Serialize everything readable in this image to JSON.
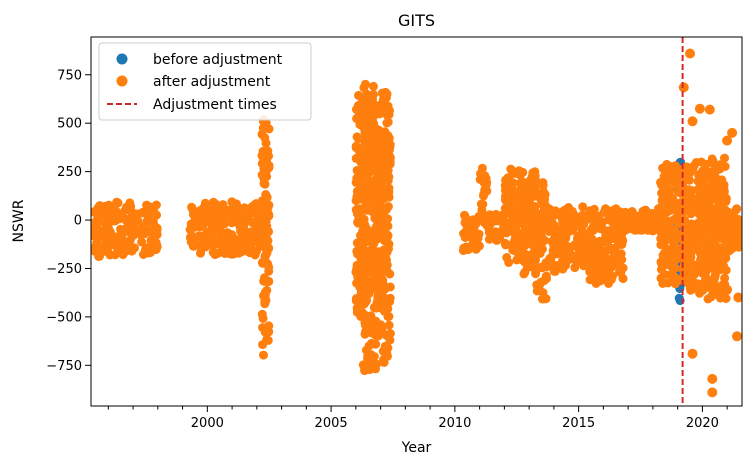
{
  "chart_data": {
    "type": "scatter",
    "title": "GITS",
    "xlabel": "Year",
    "ylabel": "NSWR",
    "xlim": [
      1995.3,
      2021.6
    ],
    "ylim": [
      -960,
      945
    ],
    "x_ticks": [
      2000,
      2005,
      2010,
      2015,
      2020
    ],
    "y_ticks": [
      -750,
      -500,
      -250,
      0,
      250,
      500,
      750
    ],
    "x_minor_ticks": [
      1996,
      1997,
      1998,
      1999,
      2001,
      2002,
      2003,
      2004,
      2006,
      2007,
      2008,
      2009,
      2011,
      2012,
      2013,
      2014,
      2016,
      2017,
      2018,
      2019,
      2021
    ],
    "grid": false,
    "legend": {
      "position": "top-left",
      "entries": [
        {
          "label": "before adjustment",
          "marker": "circle",
          "color": "#1f77b4"
        },
        {
          "label": "after adjustment",
          "marker": "circle",
          "color": "#ff7f0e"
        },
        {
          "label": "Adjustment times",
          "marker": "dashed-line",
          "color": "#d62728"
        }
      ]
    },
    "adjustment_times": [
      2019.2
    ],
    "series": [
      {
        "name": "before adjustment",
        "color": "#1f77b4",
        "description_ranges": [
          {
            "x": [
              2019.0,
              2019.15
            ],
            "y": [
              -420,
              300
            ]
          }
        ]
      },
      {
        "name": "after adjustment",
        "color": "#ff7f0e",
        "ranges": [
          {
            "x": [
              1995.3,
              1996.3
            ],
            "y": [
              -190,
              80
            ]
          },
          {
            "x": [
              1996.3,
              1997.2
            ],
            "y": [
              -180,
              95
            ]
          },
          {
            "x": [
              1997.3,
              1998.0
            ],
            "y": [
              -180,
              90
            ]
          },
          {
            "x": [
              1999.3,
              2001.2
            ],
            "y": [
              -180,
              95
            ]
          },
          {
            "x": [
              2001.2,
              2002.2
            ],
            "y": [
              -180,
              100
            ]
          },
          {
            "x": [
              2002.2,
              2002.5
            ],
            "y": [
              -700,
              560
            ]
          },
          {
            "x": [
              2006.0,
              2006.4
            ],
            "y": [
              -500,
              650
            ]
          },
          {
            "x": [
              2006.3,
              2006.8
            ],
            "y": [
              -780,
              710
            ]
          },
          {
            "x": [
              2006.8,
              2007.4
            ],
            "y": [
              -750,
              660
            ]
          },
          {
            "x": [
              2010.3,
              2011.0
            ],
            "y": [
              -160,
              30
            ]
          },
          {
            "x": [
              2011.0,
              2011.3
            ],
            "y": [
              -30,
              280
            ]
          },
          {
            "x": [
              2011.3,
              2012.0
            ],
            "y": [
              -120,
              30
            ]
          },
          {
            "x": [
              2012.0,
              2013.3
            ],
            "y": [
              -280,
              270
            ]
          },
          {
            "x": [
              2013.3,
              2013.7
            ],
            "y": [
              -410,
              200
            ]
          },
          {
            "x": [
              2013.7,
              2014.3
            ],
            "y": [
              -270,
              60
            ]
          },
          {
            "x": [
              2014.3,
              2015.3
            ],
            "y": [
              -260,
              70
            ]
          },
          {
            "x": [
              2015.3,
              2016.8
            ],
            "y": [
              -330,
              60
            ]
          },
          {
            "x": [
              2016.8,
              2017.5
            ],
            "y": [
              -60,
              50
            ]
          },
          {
            "x": [
              2017.5,
              2018.3
            ],
            "y": [
              -60,
              60
            ]
          },
          {
            "x": [
              2018.3,
              2019.3
            ],
            "y": [
              -330,
              290
            ]
          },
          {
            "x": [
              2019.3,
              2020.2
            ],
            "y": [
              -390,
              300
            ]
          },
          {
            "x": [
              2020.2,
              2021.0
            ],
            "y": [
              -410,
              330
            ]
          },
          {
            "x": [
              2021.0,
              2021.6
            ],
            "y": [
              -160,
              80
            ]
          }
        ],
        "outliers": [
          [
            2019.5,
            860
          ],
          [
            2019.25,
            685
          ],
          [
            2019.6,
            510
          ],
          [
            2019.9,
            575
          ],
          [
            2020.3,
            570
          ],
          [
            2021.2,
            450
          ],
          [
            2021.0,
            410
          ],
          [
            2020.4,
            -820
          ],
          [
            2020.4,
            -890
          ],
          [
            2021.4,
            -600
          ],
          [
            2021.45,
            -400
          ],
          [
            2019.6,
            -690
          ],
          [
            2021.0,
            -360
          ],
          [
            2020.7,
            -210
          ],
          [
            2017.8,
            -50
          ]
        ]
      }
    ]
  }
}
